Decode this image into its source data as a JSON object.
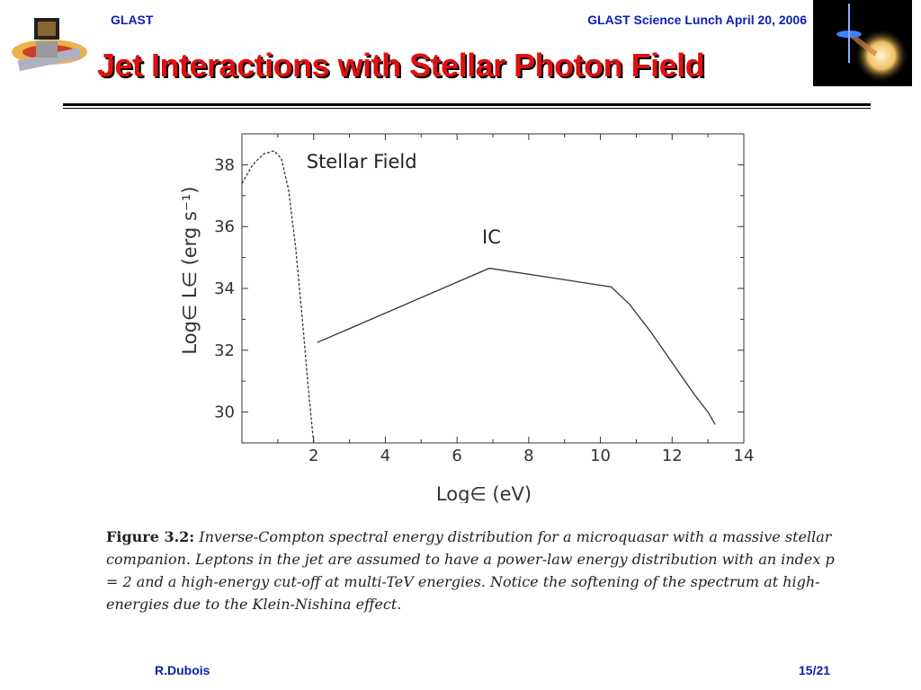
{
  "header": {
    "left": "GLAST",
    "right": "GLAST Science Lunch April 20, 2006"
  },
  "title": "Jet Interactions with Stellar Photon Field",
  "footer": {
    "author": "R.Dubois",
    "page": "15/21"
  },
  "caption": {
    "label": "Figure 3.2:",
    "text": "Inverse-Compton spectral energy distribution for a microquasar with a massive stellar companion. Leptons in the jet are assumed to have a power-law energy distribution with an index p = 2 and a high-energy cut-off at multi-TeV energies. Notice the softening of the spectrum at high-energies due to the Klein-Nishina effect."
  },
  "logos": {
    "left": "glast-satellite-logo",
    "right": "microquasar-artwork"
  },
  "chart_data": {
    "type": "line",
    "xlabel": "Log∈ (eV)",
    "ylabel": "Log∈ L∈ (erg s⁻¹)",
    "xlim": [
      0,
      14
    ],
    "ylim": [
      29,
      39
    ],
    "xticks": [
      2,
      4,
      6,
      8,
      10,
      12,
      14
    ],
    "yticks": [
      30,
      32,
      34,
      36,
      38
    ],
    "grid": false,
    "series": [
      {
        "name": "Stellar Field",
        "style": "dashed",
        "x": [
          0.0,
          0.3,
          0.6,
          0.9,
          1.1,
          1.3,
          1.5,
          1.7,
          1.85,
          2.0
        ],
        "y": [
          37.4,
          38.0,
          38.35,
          38.45,
          38.2,
          37.2,
          35.3,
          32.8,
          30.8,
          29.0
        ]
      },
      {
        "name": "IC",
        "style": "solid",
        "x": [
          2.1,
          6.9,
          10.3,
          10.8,
          11.4,
          12.0,
          12.6,
          13.0,
          13.2
        ],
        "y": [
          32.25,
          34.65,
          34.05,
          33.5,
          32.6,
          31.6,
          30.6,
          30.0,
          29.6
        ]
      }
    ]
  }
}
